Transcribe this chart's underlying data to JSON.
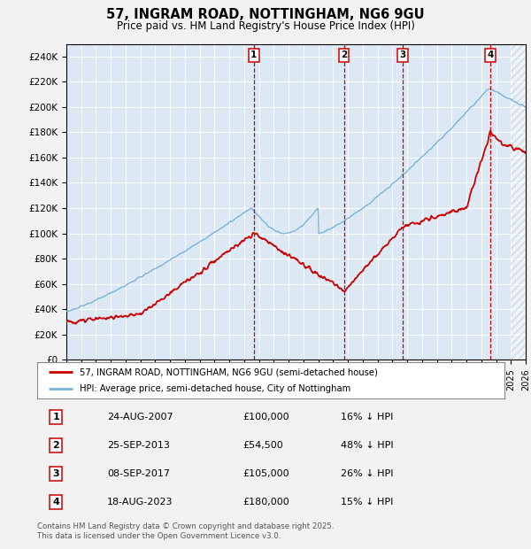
{
  "title": "57, INGRAM ROAD, NOTTINGHAM, NG6 9GU",
  "subtitle": "Price paid vs. HM Land Registry's House Price Index (HPI)",
  "ylim": [
    0,
    250000
  ],
  "yticks": [
    0,
    20000,
    40000,
    60000,
    80000,
    100000,
    120000,
    140000,
    160000,
    180000,
    200000,
    220000,
    240000
  ],
  "hpi_color": "#7ab3d9",
  "price_color": "#cc0000",
  "background_plot": "#dce9f5",
  "background_fig": "#f2f2f2",
  "legend_label_price": "57, INGRAM ROAD, NOTTINGHAM, NG6 9GU (semi-detached house)",
  "legend_label_hpi": "HPI: Average price, semi-detached house, City of Nottingham",
  "transactions": [
    {
      "num": 1,
      "date_label": "24-AUG-2007",
      "price": 100000,
      "price_str": "£100,000",
      "pct": "16%",
      "year": 2007.65
    },
    {
      "num": 2,
      "date_label": "25-SEP-2013",
      "price": 54500,
      "price_str": "£54,500",
      "pct": "48%",
      "year": 2013.73
    },
    {
      "num": 3,
      "date_label": "08-SEP-2017",
      "price": 105000,
      "price_str": "£105,000",
      "pct": "26%",
      "year": 2017.68
    },
    {
      "num": 4,
      "date_label": "18-AUG-2023",
      "price": 180000,
      "price_str": "£180,000",
      "pct": "15%",
      "year": 2023.62
    }
  ],
  "footer_line1": "Contains HM Land Registry data © Crown copyright and database right 2025.",
  "footer_line2": "This data is licensed under the Open Government Licence v3.0.",
  "xmin": 1995,
  "xmax": 2026
}
